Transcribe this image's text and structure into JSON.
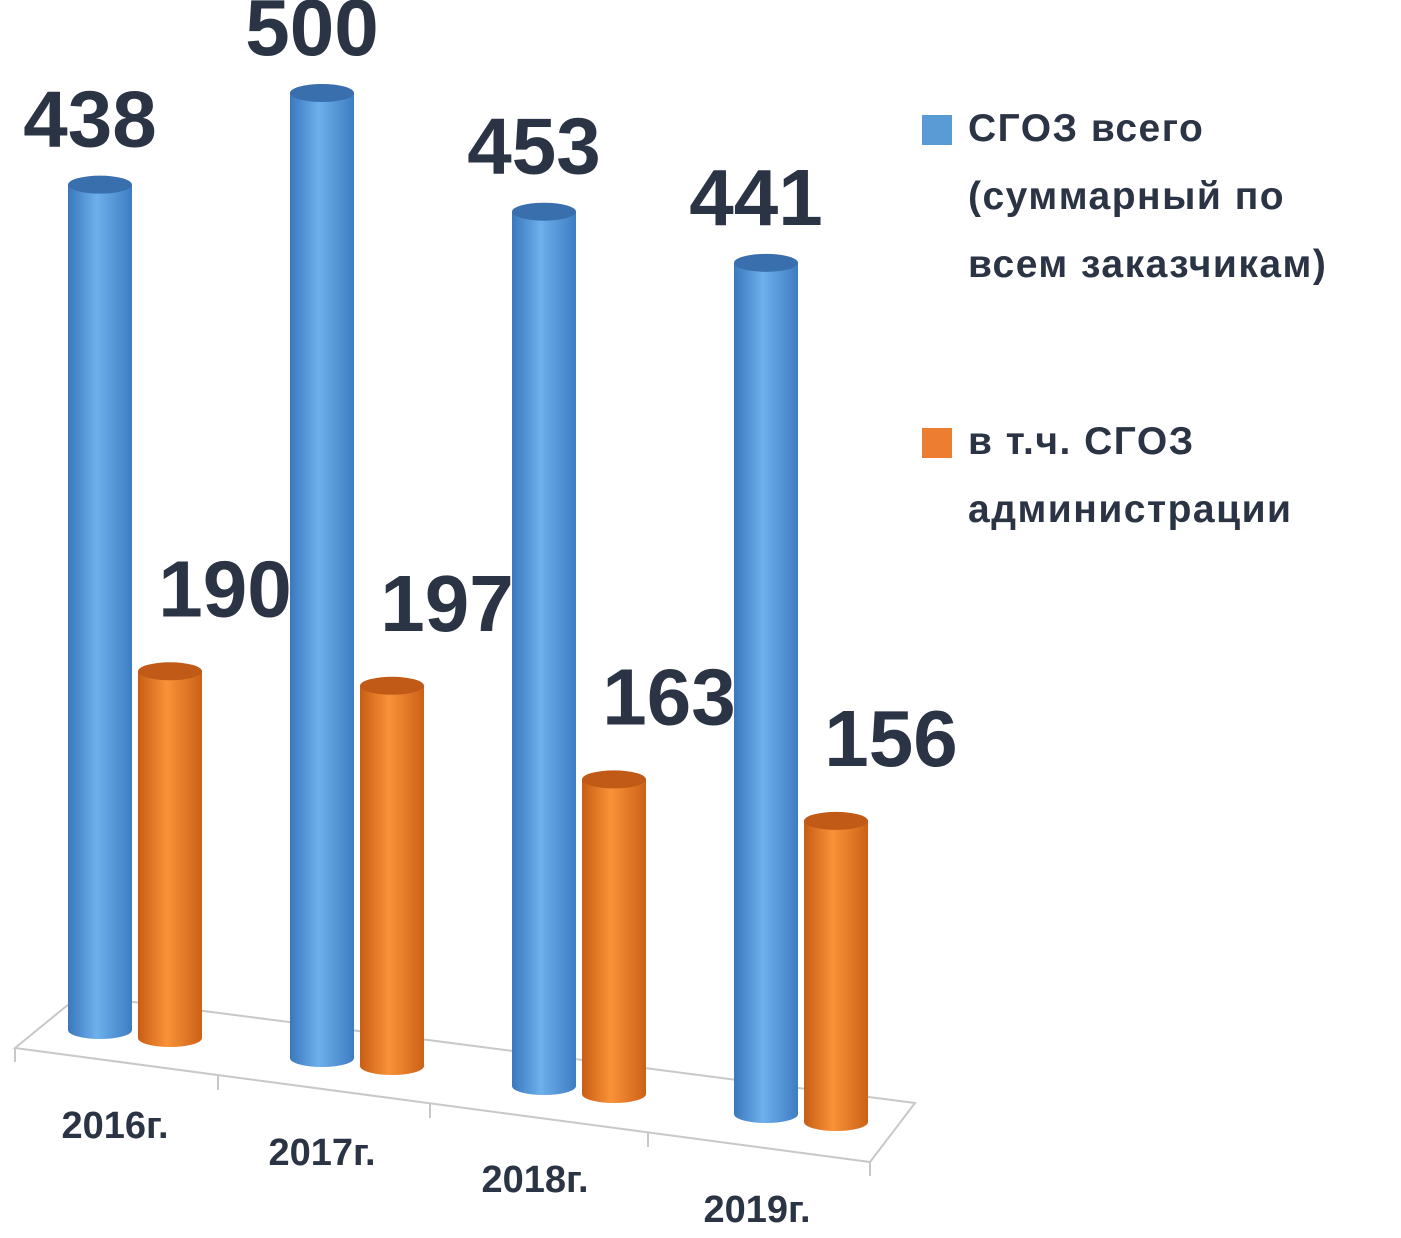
{
  "chart_data": {
    "type": "bar3d",
    "categories": [
      "2016г.",
      "2017г.",
      "2018г.",
      "2019г."
    ],
    "series": [
      {
        "name": "СГОЗ всего (суммарный по всем заказчикам)",
        "color": "#5b9bd5",
        "values": [
          438,
          500,
          453,
          441
        ]
      },
      {
        "name": "в т.ч. СГОЗ администрации",
        "color": "#ed7d31",
        "values": [
          190,
          197,
          163,
          156
        ]
      }
    ]
  }
}
